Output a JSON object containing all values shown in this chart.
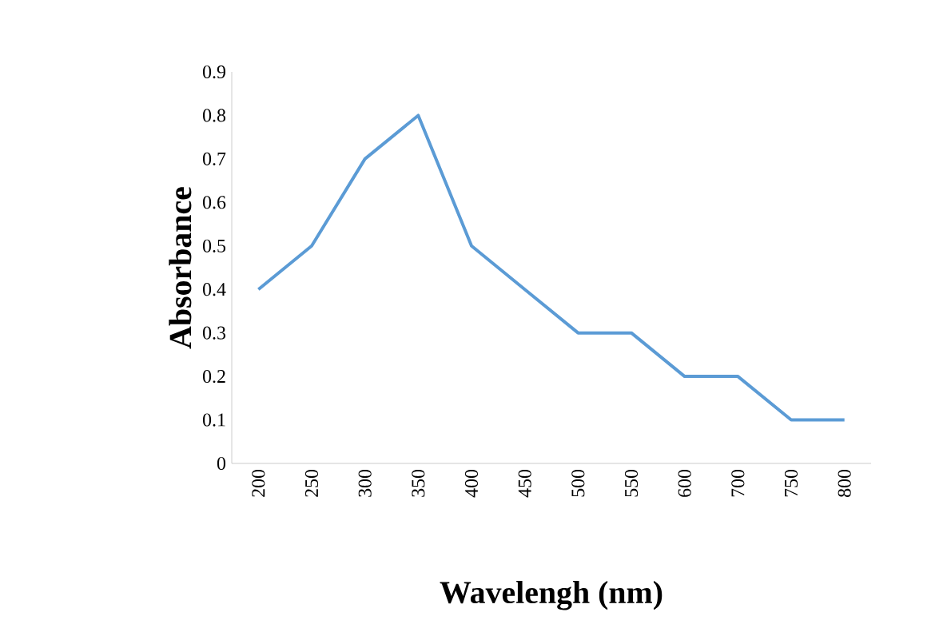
{
  "chart_data": {
    "type": "line",
    "xlabel": "Wavelengh (nm)",
    "ylabel": "Absorbance",
    "categories": [
      "200",
      "250",
      "300",
      "350",
      "400",
      "450",
      "500",
      "550",
      "600",
      "700",
      "750",
      "800"
    ],
    "series": [
      {
        "color": "#5b9bd5",
        "values": [
          0.4,
          0.5,
          0.7,
          0.8,
          0.5,
          0.4,
          0.3,
          0.3,
          0.2,
          0.2,
          0.1,
          0.1
        ]
      }
    ],
    "ylim": [
      0,
      0.9
    ],
    "yticks": [
      0,
      0.1,
      0.2,
      0.3,
      0.4,
      0.5,
      0.6,
      0.7,
      0.8,
      0.9
    ],
    "marker": "none",
    "line_style": "solid"
  }
}
